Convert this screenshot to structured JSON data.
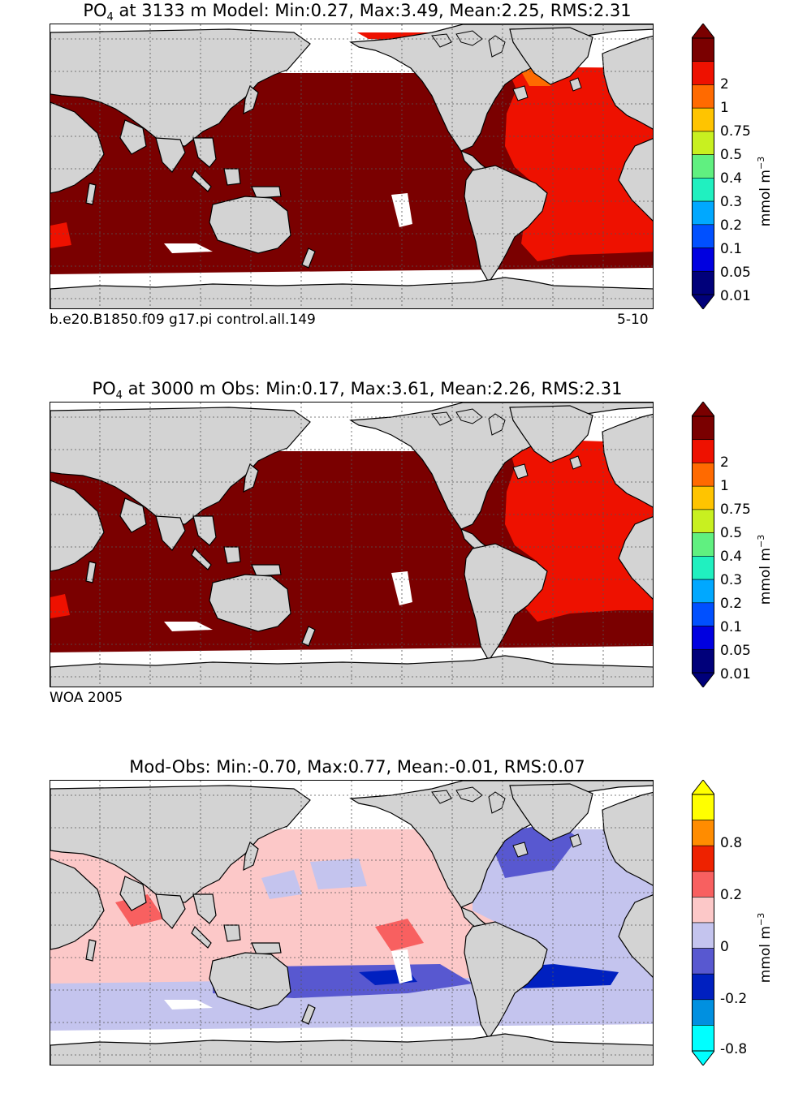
{
  "panels": [
    {
      "id": "model",
      "title_species": "PO",
      "title_sub": "4",
      "title_rest": " at 3133 m Model: Min:0.27, Max:3.49, Mean:2.25, RMS:2.31",
      "left_label": "b.e20.B1850.f09 g17.pi control.all.149",
      "right_label": "5-10",
      "colorbar_ticks": [
        "2",
        "1",
        "0.75",
        "0.5",
        "0.4",
        "0.3",
        "0.2",
        "0.1",
        "0.05",
        "0.01"
      ],
      "colorbar_colors": [
        "#7a0000",
        "#ee1100",
        "#ff6a00",
        "#ffc400",
        "#c8f020",
        "#60f080",
        "#20f0c0",
        "#00a8ff",
        "#0050ff",
        "#0000e0",
        "#00007a"
      ],
      "unit": "mmol m",
      "unit_exp": "−3"
    },
    {
      "id": "obs",
      "title_species": "PO",
      "title_sub": "4",
      "title_rest": " at 3000 m Obs: Min:0.17, Max:3.61, Mean:2.26, RMS:2.31",
      "left_label": "WOA 2005",
      "right_label": "",
      "colorbar_ticks": [
        "2",
        "1",
        "0.75",
        "0.5",
        "0.4",
        "0.3",
        "0.2",
        "0.1",
        "0.05",
        "0.01"
      ],
      "colorbar_colors": [
        "#7a0000",
        "#ee1100",
        "#ff6a00",
        "#ffc400",
        "#c8f020",
        "#60f080",
        "#20f0c0",
        "#00a8ff",
        "#0050ff",
        "#0000e0",
        "#00007a"
      ],
      "unit": "mmol m",
      "unit_exp": "−3"
    },
    {
      "id": "diff",
      "title_species": "",
      "title_sub": "",
      "title_rest": "Mod-Obs: Min:-0.70, Max:0.77, Mean:-0.01, RMS:0.07",
      "left_label": "",
      "right_label": "",
      "colorbar_ticks": [
        "0.8",
        "0.2",
        "0",
        "-0.2",
        "-0.8"
      ],
      "colorbar_colors": [
        "#ffff00",
        "#ff8c00",
        "#ee2200",
        "#f86060",
        "#fcc8c8",
        "#c4c4ee",
        "#5858d0",
        "#0020c0",
        "#0090e0",
        "#00ffff"
      ],
      "unit": "mmol m",
      "unit_exp": "−3"
    }
  ],
  "colors": {
    "land": "#d3d3d3",
    "nodata": "#ffffff",
    "model_pacific": "#7a0000",
    "model_atlantic": "#ee1100",
    "model_north_atlantic": "#ff6a00"
  }
}
